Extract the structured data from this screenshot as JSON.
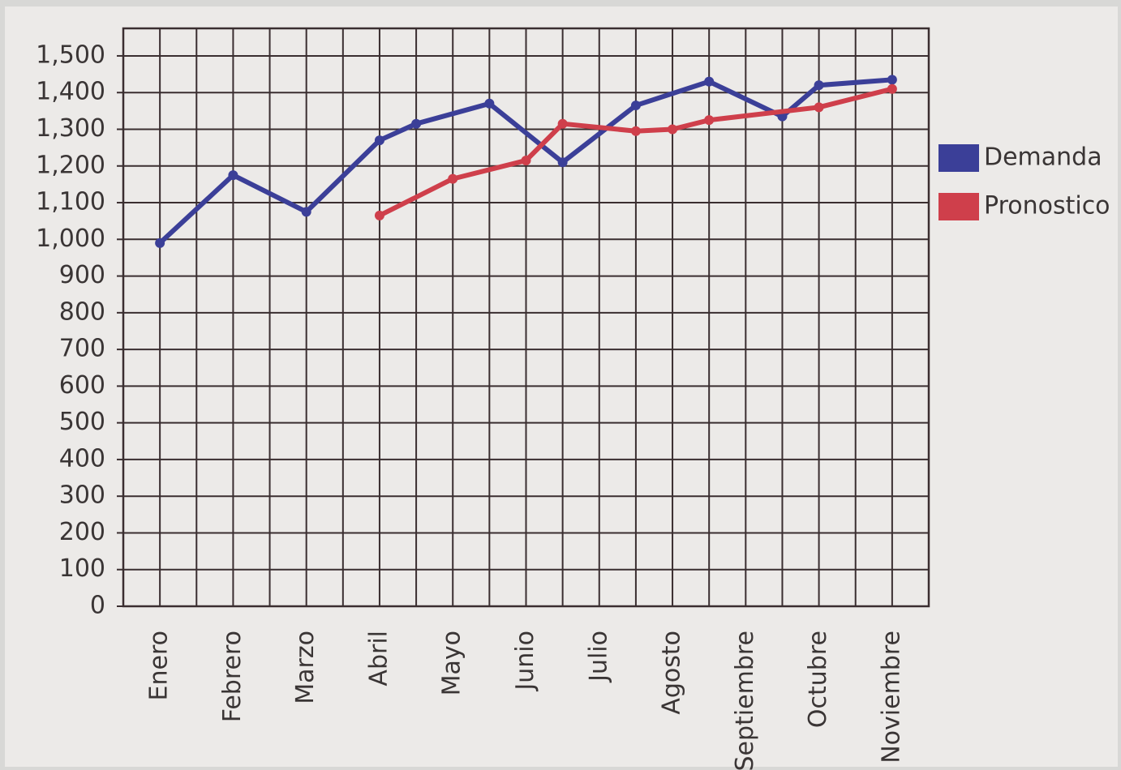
{
  "chart_data": {
    "type": "line",
    "xlim": [
      0.5,
      11.5
    ],
    "xticks": [
      {
        "value": 1,
        "label": "Enero"
      },
      {
        "value": 2,
        "label": "Febrero"
      },
      {
        "value": 3,
        "label": "Marzo"
      },
      {
        "value": 4,
        "label": "Abril"
      },
      {
        "value": 5,
        "label": "Mayo"
      },
      {
        "value": 6,
        "label": "Junio"
      },
      {
        "value": 7,
        "label": "Julio"
      },
      {
        "value": 8,
        "label": "Agosto"
      },
      {
        "value": 9,
        "label": "Septiembre"
      },
      {
        "value": 10,
        "label": "Octubre"
      },
      {
        "value": 11,
        "label": "Noviembre"
      }
    ],
    "ylim": [
      0,
      1575
    ],
    "yticks": [
      0,
      100,
      200,
      300,
      400,
      500,
      600,
      700,
      800,
      900,
      {
        "value": 1000,
        "label": "1,000"
      },
      {
        "value": 1100,
        "label": "1,100"
      },
      {
        "value": 1200,
        "label": "1,200"
      },
      {
        "value": 1300,
        "label": "1,300"
      },
      {
        "value": 1400,
        "label": "1,400"
      },
      {
        "value": 1500,
        "label": "1,500"
      }
    ],
    "grid": true,
    "legend": "right",
    "series": [
      {
        "name": "Demanda",
        "color": "#3b3f98",
        "x": [
          1,
          2,
          3,
          4,
          4.5,
          5.5,
          6.5,
          7.5,
          8.5,
          9.5,
          10,
          11
        ],
        "values": [
          990,
          1175,
          1075,
          1270,
          1315,
          1370,
          1210,
          1365,
          1430,
          1335,
          1420,
          1435
        ]
      },
      {
        "name": "Pronostico",
        "color": "#cf3f4b",
        "x": [
          4,
          5,
          6,
          6.5,
          7.5,
          8,
          8.5,
          10,
          11
        ],
        "values": [
          1065,
          1165,
          1215,
          1315,
          1295,
          1300,
          1325,
          1360,
          1410
        ]
      }
    ]
  }
}
